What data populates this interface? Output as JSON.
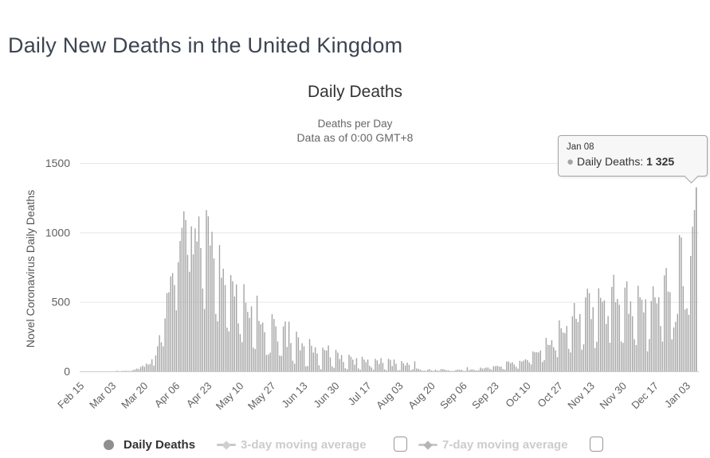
{
  "page": {
    "title": "Daily New Deaths in the United Kingdom"
  },
  "chart": {
    "title": "Daily Deaths",
    "subtitle1": "Deaths per Day",
    "subtitle2": "Data as of 0:00 GMT+8",
    "y_axis_title": "Novel Coronavirus Daily Deaths"
  },
  "tooltip": {
    "date": "Jan 08",
    "bullet": "●",
    "series_label": "Daily Deaths:",
    "value": "1 325"
  },
  "legend": {
    "items": [
      {
        "label": "Daily Deaths",
        "enabled": true
      },
      {
        "label": "3-day moving average",
        "enabled": false
      },
      {
        "label": "7-day moving average",
        "enabled": false
      }
    ]
  },
  "colors": {
    "bar": "#a4a4a4",
    "hover_bar": "#949494",
    "grid": "#e6e6e6",
    "axis_line": "#cccccc",
    "crosshair": "#cccccc",
    "tick_label": "#606060",
    "page_title": "#3d4451",
    "legend_disabled": "#cccccc",
    "legend_marker": "#8f8f8f"
  },
  "chart_data": {
    "type": "bar",
    "title": "Daily Deaths",
    "xlabel": "",
    "ylabel": "Novel Coronavirus Daily Deaths",
    "x_start_date": "Feb 15",
    "x_end_date": "Jan 08",
    "x_tick_labels": [
      "Feb 15",
      "Mar 03",
      "Mar 20",
      "Apr 06",
      "Apr 23",
      "May 10",
      "May 27",
      "Jun 13",
      "Jun 30",
      "Jul 17",
      "Aug 03",
      "Aug 20",
      "Sep 06",
      "Sep 23",
      "Oct 10",
      "Oct 27",
      "Nov 13",
      "Nov 30",
      "Dec 17",
      "Jan 03"
    ],
    "x_tick_indices": [
      0,
      17,
      34,
      51,
      68,
      85,
      102,
      119,
      136,
      153,
      170,
      187,
      204,
      221,
      238,
      255,
      272,
      289,
      306,
      323
    ],
    "ylim": [
      0,
      1500
    ],
    "yticks": [
      0,
      500,
      1000,
      1500
    ],
    "grid": true,
    "legend_position": "bottom",
    "hover_point": {
      "index": 328,
      "date": "Jan 08",
      "value": 1325
    },
    "values": [
      0,
      0,
      0,
      0,
      0,
      0,
      0,
      0,
      0,
      0,
      0,
      0,
      0,
      0,
      0,
      0,
      0,
      0,
      0,
      1,
      1,
      0,
      1,
      1,
      4,
      2,
      2,
      2,
      10,
      14,
      20,
      16,
      32,
      41,
      33,
      56,
      48,
      54,
      87,
      41,
      115,
      181,
      260,
      209,
      180,
      381,
      563,
      569,
      684,
      708,
      621,
      439,
      786,
      938,
      1034,
      1152,
      1089,
      839,
      717,
      1044,
      842,
      1029,
      935,
      1115,
      888,
      596,
      449,
      1161,
      1116,
      906,
      1005,
      813,
      413,
      360,
      909,
      674,
      739,
      621,
      315,
      288,
      693,
      649,
      539,
      626,
      346,
      268,
      210,
      627,
      494,
      428,
      384,
      468,
      170,
      160,
      545,
      363,
      338,
      351,
      282,
      118,
      121,
      134,
      412,
      377,
      324,
      215,
      113,
      111,
      324,
      359,
      176,
      357,
      204,
      77,
      55,
      286,
      245,
      151,
      202,
      181,
      36,
      38,
      233,
      184,
      135,
      173,
      128,
      43,
      15,
      171,
      154,
      149,
      186,
      100,
      36,
      25,
      155,
      135,
      89,
      117,
      67,
      22,
      16,
      120,
      105,
      85,
      48,
      95,
      21,
      11,
      105,
      85,
      66,
      85,
      40,
      27,
      11,
      90,
      79,
      53,
      95,
      61,
      14,
      7,
      90,
      83,
      38,
      85,
      54,
      8,
      9,
      74,
      58,
      42,
      63,
      47,
      8,
      15,
      72,
      20,
      18,
      12,
      5,
      5,
      3,
      12,
      16,
      6,
      2,
      12,
      6,
      4,
      16,
      16,
      12,
      9,
      7,
      1,
      2,
      3,
      10,
      13,
      10,
      12,
      3,
      3,
      30,
      8,
      14,
      14,
      9,
      5,
      9,
      27,
      20,
      21,
      27,
      27,
      18,
      11,
      37,
      37,
      40,
      34,
      34,
      17,
      13,
      71,
      71,
      59,
      66,
      49,
      33,
      19,
      76,
      70,
      77,
      87,
      81,
      65,
      50,
      143,
      137,
      138,
      136,
      150,
      67,
      80,
      241,
      191,
      189,
      224,
      174,
      151,
      102,
      367,
      310,
      280,
      274,
      326,
      162,
      136,
      397,
      492,
      378,
      355,
      413,
      156,
      194,
      532,
      595,
      563,
      376,
      462,
      168,
      213,
      598,
      529,
      501,
      511,
      341,
      398,
      206,
      608,
      695,
      498,
      521,
      479,
      215,
      205,
      603,
      648,
      414,
      504,
      397,
      231,
      189,
      616,
      533,
      516,
      424,
      519,
      144,
      232,
      506,
      612,
      532,
      489,
      534,
      326,
      215,
      691,
      744,
      574,
      570,
      231,
      316,
      357,
      414,
      981,
      964,
      613,
      445,
      454,
      407,
      830,
      1041,
      1162,
      1325
    ]
  }
}
